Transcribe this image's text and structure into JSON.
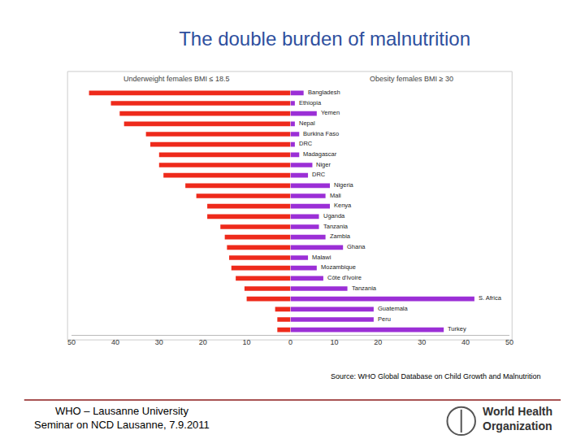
{
  "chart_data": {
    "type": "bar",
    "orientation": "horizontal",
    "title": "The double burden of malnutrition",
    "source": "Source: WHO Global Database on Child Growth and Malnutrition",
    "categories": [
      "Bangladesh",
      "Ethiopia",
      "Yemen",
      "Nepal",
      "Burkina Faso",
      "DRC",
      "Madagascar",
      "Niger",
      "DRC",
      "Nigeria",
      "Mali",
      "Kenya",
      "Uganda",
      "Tanzania",
      "Zambia",
      "Ghana",
      "Malawi",
      "Mozambique",
      "Côte d'Ivoire",
      "Tanzania",
      "S. Africa",
      "Guatemala",
      "Peru",
      "Turkey"
    ],
    "series": [
      {
        "name": "Underweight females BMI ≤ 18.5",
        "color": "#ee2a1b",
        "values": [
          46,
          41,
          39,
          38,
          33,
          32,
          30,
          30,
          29,
          24,
          21.5,
          19,
          19,
          16,
          15,
          14.5,
          14,
          13.5,
          12.5,
          10.5,
          10,
          3.5,
          3,
          3
        ]
      },
      {
        "name": "Obesity females BMI ≥ 30",
        "color": "#9b2fd6",
        "axis": "x2",
        "values": [
          3,
          1,
          6,
          1,
          2,
          1,
          2,
          5,
          4,
          9,
          8,
          9,
          6.5,
          6.5,
          8,
          12,
          4,
          6,
          7.5,
          13,
          42,
          19,
          19,
          35
        ]
      }
    ],
    "xlim": [
      50,
      0
    ],
    "xticks": [
      50,
      40,
      30,
      20,
      10
    ],
    "x2lim": [
      0,
      50
    ],
    "x2ticks": [
      0,
      10,
      20,
      30,
      40,
      50
    ],
    "grid": false
  },
  "footer": {
    "lines": [
      "WHO – Lausanne University",
      "Seminar on NCD Lausanne, 7.9.2011"
    ],
    "logo": [
      "World Health",
      "Organization"
    ]
  }
}
